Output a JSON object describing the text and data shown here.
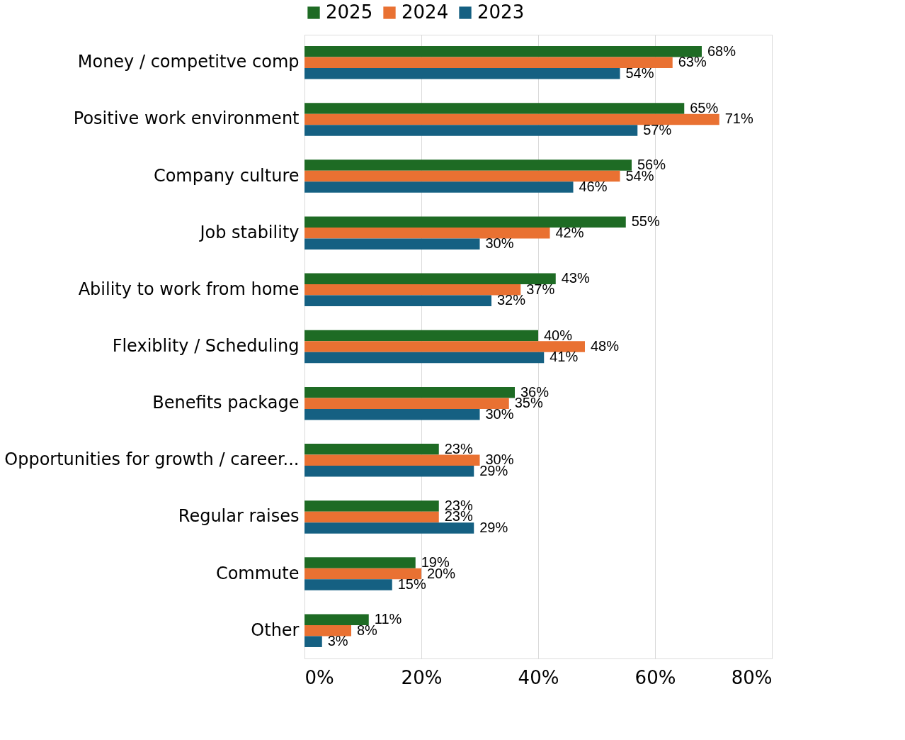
{
  "chart_data": {
    "type": "bar",
    "orientation": "horizontal",
    "categories": [
      "Money / competitve comp",
      "Positive work environment",
      "Company culture",
      "Job stability",
      "Ability to work from home",
      "Flexiblity / Scheduling",
      "Benefits package",
      "Opportunities for growth / career...",
      "Regular raises",
      "Commute",
      "Other"
    ],
    "series": [
      {
        "name": "2025",
        "color": "#1e6b24",
        "values": [
          68,
          65,
          56,
          55,
          43,
          40,
          36,
          23,
          23,
          19,
          11
        ],
        "value_labels": [
          "68%",
          "65%",
          "56%",
          "55%",
          "43%",
          "40%",
          "36%",
          "23%",
          "23%",
          "19%",
          "11%"
        ]
      },
      {
        "name": "2024",
        "color": "#e97132",
        "values": [
          63,
          71,
          54,
          42,
          37,
          48,
          35,
          30,
          23,
          20,
          8
        ],
        "value_labels": [
          "63%",
          "71%",
          "54%",
          "42%",
          "37%",
          "48%",
          "35%",
          "30%",
          "23%",
          "20%",
          "8%"
        ]
      },
      {
        "name": "2023",
        "color": "#156082",
        "values": [
          54,
          57,
          46,
          30,
          32,
          41,
          30,
          29,
          29,
          15,
          3
        ],
        "value_labels": [
          "54%",
          "57%",
          "46%",
          "30%",
          "32%",
          "41%",
          "30%",
          "29%",
          "29%",
          "15%",
          "3%"
        ]
      }
    ],
    "xlim": [
      0,
      80
    ],
    "xticks": [
      {
        "value": 0,
        "label": "0%"
      },
      {
        "value": 20,
        "label": "20%"
      },
      {
        "value": 40,
        "label": "40%"
      },
      {
        "value": 60,
        "label": "60%"
      },
      {
        "value": 80,
        "label": "80%"
      }
    ],
    "grid": "x",
    "legend": "top"
  }
}
